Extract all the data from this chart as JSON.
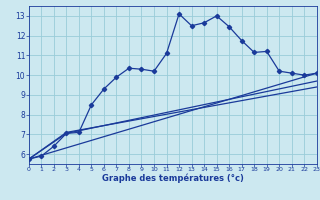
{
  "xlabel": "Graphe des températures (°c)",
  "background_color": "#cce8f0",
  "grid_color": "#99ccd9",
  "line_color": "#1a3a9a",
  "xlim": [
    0,
    23
  ],
  "ylim": [
    5.5,
    13.5
  ],
  "xticks": [
    0,
    1,
    2,
    3,
    4,
    5,
    6,
    7,
    8,
    9,
    10,
    11,
    12,
    13,
    14,
    15,
    16,
    17,
    18,
    19,
    20,
    21,
    22,
    23
  ],
  "yticks": [
    6,
    7,
    8,
    9,
    10,
    11,
    12,
    13
  ],
  "curve1_x": [
    0,
    1,
    2,
    3,
    4,
    5,
    6,
    7,
    8,
    9,
    10,
    11,
    12,
    13,
    14,
    15,
    16,
    17,
    18,
    19,
    20,
    21,
    22,
    23
  ],
  "curve1_y": [
    5.75,
    5.9,
    6.4,
    7.05,
    7.1,
    8.5,
    9.3,
    9.9,
    10.35,
    10.3,
    10.2,
    11.1,
    13.1,
    12.5,
    12.65,
    13.0,
    12.45,
    11.75,
    11.15,
    11.2,
    10.2,
    10.1,
    10.0,
    10.1
  ],
  "curve2_x": [
    0,
    23
  ],
  "curve2_y": [
    5.75,
    10.1
  ],
  "curve3_x": [
    0,
    3,
    23
  ],
  "curve3_y": [
    5.75,
    7.05,
    9.7
  ],
  "curve4_x": [
    0,
    3,
    23
  ],
  "curve4_y": [
    5.75,
    7.1,
    9.4
  ]
}
